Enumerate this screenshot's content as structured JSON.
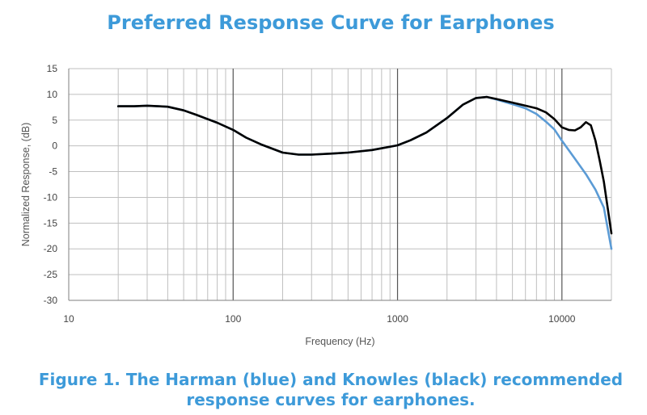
{
  "chart_data": {
    "type": "line",
    "title": "Preferred Response Curve for Earphones",
    "xlabel": "Frequency (Hz)",
    "ylabel": "Normalized Response, (dB)",
    "x_scale": "log",
    "xlim": [
      10,
      20000
    ],
    "ylim": [
      -30,
      15
    ],
    "x_ticks": [
      10,
      100,
      1000,
      10000
    ],
    "x_tick_labels": [
      "10",
      "100",
      "1000",
      "10000"
    ],
    "y_ticks": [
      15,
      10,
      5,
      0,
      -5,
      -10,
      -15,
      -20,
      -25,
      -30
    ],
    "y_tick_labels": [
      "15",
      "10",
      "5",
      "0",
      "-5",
      "-10",
      "-15",
      "-20",
      "-25",
      "-30"
    ],
    "grid": true,
    "colors": {
      "harman": "#5b9bd5",
      "knowles": "#000000",
      "grid": "#bfbfbf"
    },
    "series": [
      {
        "key": "harman",
        "x": [
          20,
          25,
          30,
          35,
          40,
          50,
          60,
          80,
          100,
          120,
          150,
          200,
          250,
          300,
          400,
          500,
          700,
          1000,
          1200,
          1500,
          2000,
          2500,
          3000,
          3500,
          4000,
          5000,
          6000,
          7000,
          8000,
          9000,
          10000,
          12000,
          14000,
          16000,
          18000,
          20000
        ],
        "y": [
          7.7,
          7.7,
          7.8,
          7.7,
          7.6,
          6.9,
          6.0,
          4.5,
          3.1,
          1.6,
          0.2,
          -1.3,
          -1.7,
          -1.7,
          -1.5,
          -1.3,
          -0.8,
          0.1,
          1.1,
          2.6,
          5.4,
          8.0,
          9.3,
          9.5,
          9.0,
          8.1,
          7.3,
          6.2,
          4.7,
          3.2,
          1.0,
          -2.5,
          -5.5,
          -8.5,
          -12.0,
          -20.0
        ]
      },
      {
        "key": "knowles",
        "x": [
          20,
          25,
          30,
          35,
          40,
          50,
          60,
          80,
          100,
          120,
          150,
          200,
          250,
          300,
          400,
          500,
          700,
          1000,
          1200,
          1500,
          2000,
          2500,
          3000,
          3500,
          4000,
          5000,
          6000,
          7000,
          8000,
          9000,
          10000,
          11000,
          12000,
          13000,
          14000,
          15000,
          16000,
          17000,
          18000,
          20000
        ],
        "y": [
          7.7,
          7.7,
          7.8,
          7.7,
          7.6,
          6.9,
          6.0,
          4.5,
          3.1,
          1.6,
          0.2,
          -1.3,
          -1.7,
          -1.7,
          -1.5,
          -1.3,
          -0.8,
          0.1,
          1.1,
          2.6,
          5.4,
          8.0,
          9.3,
          9.5,
          9.1,
          8.4,
          7.8,
          7.3,
          6.5,
          5.2,
          3.6,
          3.1,
          3.0,
          3.6,
          4.6,
          4.0,
          1.0,
          -3.0,
          -7.0,
          -17.0
        ]
      }
    ]
  },
  "caption": {
    "line1": "Figure 1.  The Harman (blue) and Knowles (black) recommended",
    "line2": "response curves for earphones."
  }
}
